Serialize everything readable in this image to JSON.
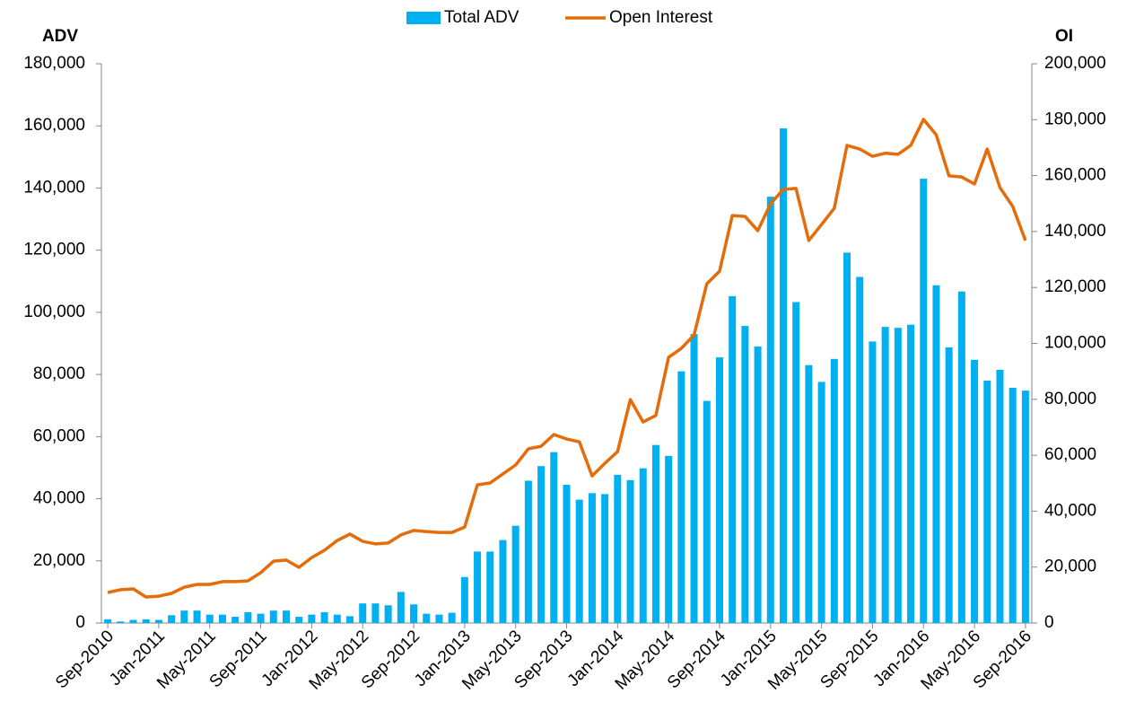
{
  "chart_data": {
    "type": "bar_line",
    "y_label": "ADV",
    "y2_label": "OI",
    "categories": [
      "Sep-2010",
      null,
      null,
      null,
      "Jan-2011",
      null,
      null,
      null,
      "May-2011",
      null,
      null,
      null,
      "Sep-2011",
      null,
      null,
      null,
      "Jan-2012",
      null,
      null,
      null,
      "May-2012",
      null,
      null,
      null,
      "Sep-2012",
      null,
      null,
      null,
      "Jan-2013",
      null,
      null,
      null,
      "May-2013",
      null,
      null,
      null,
      "Sep-2013",
      null,
      null,
      null,
      "Jan-2014",
      null,
      null,
      null,
      "May-2014",
      null,
      null,
      null,
      "Sep-2014",
      null,
      null,
      null,
      "Jan-2015",
      null,
      null,
      null,
      "May-2015",
      null,
      null,
      null,
      "Sep-2015",
      null,
      null,
      null,
      "Jan-2016",
      null,
      null,
      null,
      "May-2016",
      null,
      null,
      null,
      "Sep-2016"
    ],
    "series": [
      {
        "name": "Total ADV",
        "color": "#00b0f0",
        "axis": "y",
        "values": [
          1200,
          500,
          1000,
          1200,
          1000,
          2500,
          4000,
          4000,
          2700,
          2700,
          2000,
          3500,
          3000,
          4000,
          4000,
          2000,
          2700,
          3500,
          2700,
          2200,
          6300,
          6300,
          5700,
          10000,
          6000,
          3000,
          2700,
          3300,
          14800,
          23000,
          23000,
          26700,
          31300,
          45800,
          50500,
          55000,
          44500,
          39700,
          41800,
          41500,
          47700,
          46000,
          49800,
          57300,
          53800,
          81000,
          93000,
          71500,
          85500,
          105200,
          95600,
          89000,
          137200,
          159200,
          103300,
          83000,
          77600,
          85000,
          119200,
          111400,
          90600,
          95300,
          95000,
          96000,
          143000,
          108700,
          88700,
          106700,
          84700,
          78000,
          81500,
          75700,
          74800
        ]
      },
      {
        "name": "Open Interest",
        "color": "#e46c0a",
        "axis": "y2",
        "values": [
          10900,
          11900,
          12200,
          9300,
          9600,
          10600,
          12800,
          13800,
          13800,
          14800,
          14800,
          15100,
          18000,
          22100,
          22500,
          19900,
          23400,
          26000,
          29500,
          31800,
          29200,
          28300,
          28600,
          31500,
          33100,
          32700,
          32400,
          32400,
          34300,
          49400,
          50100,
          53300,
          56500,
          62300,
          63200,
          67400,
          65800,
          64800,
          52600,
          57100,
          61300,
          79900,
          71900,
          74200,
          95000,
          98200,
          103000,
          121300,
          125800,
          145700,
          145400,
          140300,
          149900,
          155100,
          155400,
          136800,
          142500,
          148300,
          170800,
          169500,
          166900,
          168000,
          167600,
          170800,
          180100,
          174600,
          159900,
          159500,
          157000,
          169500,
          155700,
          149000,
          136800
        ]
      }
    ],
    "ylim": [
      0,
      180000
    ],
    "yticks": [
      {
        "value": 0,
        "label": "0"
      },
      {
        "value": 20000,
        "label": "20,000"
      },
      {
        "value": 40000,
        "label": "40,000"
      },
      {
        "value": 60000,
        "label": "60,000"
      },
      {
        "value": 80000,
        "label": "80,000"
      },
      {
        "value": 100000,
        "label": "100,000"
      },
      {
        "value": 120000,
        "label": "120,000"
      },
      {
        "value": 140000,
        "label": "140,000"
      },
      {
        "value": 160000,
        "label": "160,000"
      },
      {
        "value": 180000,
        "label": "180,000"
      }
    ],
    "y2lim": [
      0,
      200000
    ],
    "y2ticks": [
      {
        "value": 0,
        "label": "0"
      },
      {
        "value": 20000,
        "label": "20,000"
      },
      {
        "value": 40000,
        "label": "40,000"
      },
      {
        "value": 60000,
        "label": "60,000"
      },
      {
        "value": 80000,
        "label": "80,000"
      },
      {
        "value": 100000,
        "label": "100,000"
      },
      {
        "value": 120000,
        "label": "120,000"
      },
      {
        "value": 140000,
        "label": "140,000"
      },
      {
        "value": 160000,
        "label": "160,000"
      },
      {
        "value": 180000,
        "label": "180,000"
      },
      {
        "value": 200000,
        "label": "200,000"
      }
    ],
    "grid": false,
    "legend": "top"
  }
}
